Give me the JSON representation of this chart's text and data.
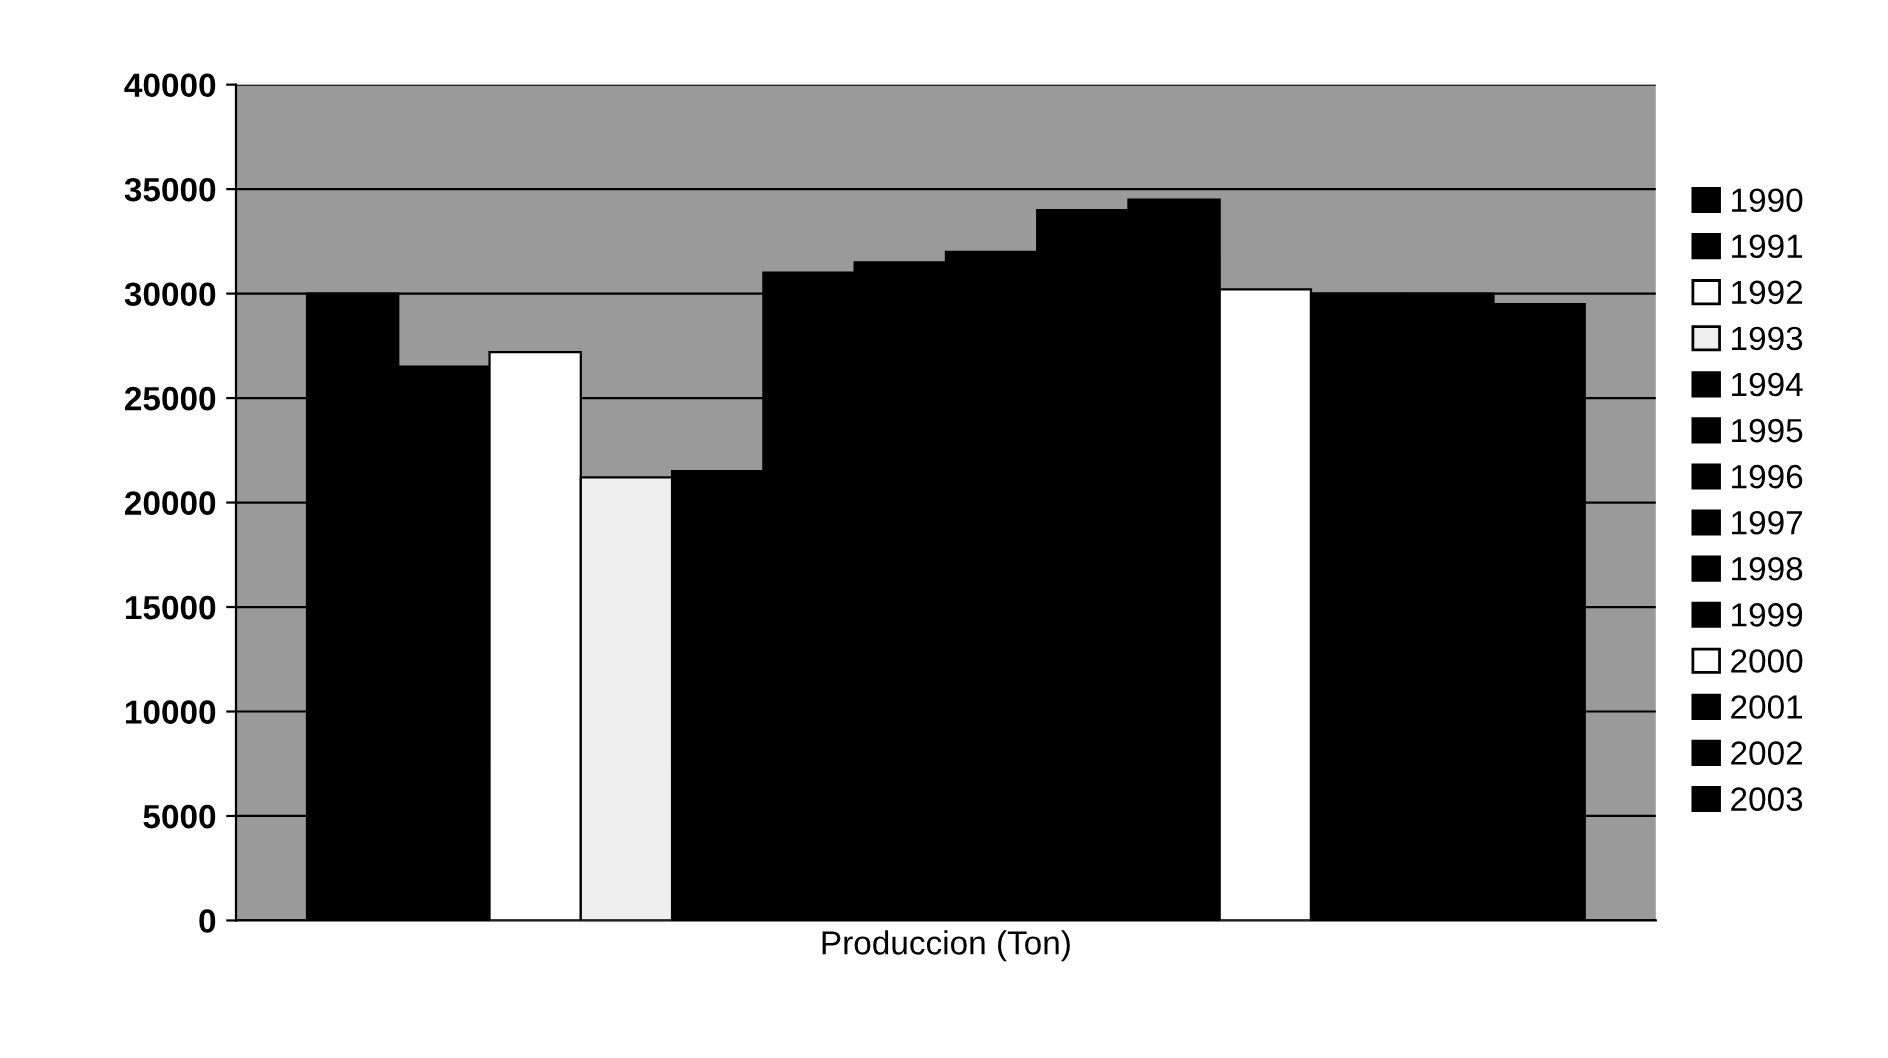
{
  "chart_data": {
    "type": "bar",
    "categories": [
      "Produccion (Ton)"
    ],
    "series": [
      {
        "name": "1990",
        "color": "#000000",
        "values": [
          30000
        ]
      },
      {
        "name": "1991",
        "color": "#000000",
        "values": [
          26500
        ]
      },
      {
        "name": "1992",
        "color": "#ffffff",
        "values": [
          27200
        ]
      },
      {
        "name": "1993",
        "color": "#eeeeee",
        "values": [
          21200
        ]
      },
      {
        "name": "1994",
        "color": "#000000",
        "values": [
          21500
        ]
      },
      {
        "name": "1995",
        "color": "#000000",
        "values": [
          31000
        ]
      },
      {
        "name": "1996",
        "color": "#000000",
        "values": [
          31500
        ]
      },
      {
        "name": "1997",
        "color": "#000000",
        "values": [
          32000
        ]
      },
      {
        "name": "1998",
        "color": "#000000",
        "values": [
          34000
        ]
      },
      {
        "name": "1999",
        "color": "#000000",
        "values": [
          34500
        ]
      },
      {
        "name": "2000",
        "color": "#ffffff",
        "values": [
          30200
        ]
      },
      {
        "name": "2001",
        "color": "#000000",
        "values": [
          30000
        ]
      },
      {
        "name": "2002",
        "color": "#000000",
        "values": [
          30000
        ]
      },
      {
        "name": "2003",
        "color": "#000000",
        "values": [
          29500
        ]
      }
    ],
    "ylim": [
      0,
      40000
    ],
    "yticks": [
      0,
      5000,
      10000,
      15000,
      20000,
      25000,
      30000,
      35000,
      40000
    ],
    "grid": "y",
    "legend": "right"
  }
}
